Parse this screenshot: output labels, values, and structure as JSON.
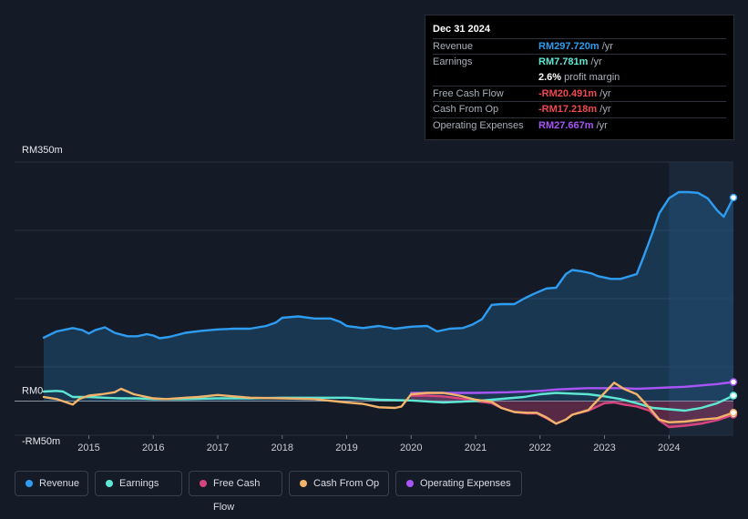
{
  "tooltip": {
    "date": "Dec 31 2024",
    "rows": [
      {
        "label": "Revenue",
        "value": "RM297.720m",
        "unit": " /yr",
        "color": "#2e9cf0"
      },
      {
        "label": "Earnings",
        "value": "RM7.781m",
        "unit": " /yr",
        "color": "#5ee8d4"
      },
      {
        "label": "",
        "value": "2.6%",
        "unit": " profit margin",
        "color": "#ffffff"
      },
      {
        "label": "Free Cash Flow",
        "value": "-RM20.491m",
        "unit": " /yr",
        "color": "#f0484f"
      },
      {
        "label": "Cash From Op",
        "value": "-RM17.218m",
        "unit": " /yr",
        "color": "#f0484f"
      },
      {
        "label": "Operating Expenses",
        "value": "RM27.667m",
        "unit": " /yr",
        "color": "#a855f7"
      }
    ]
  },
  "legend": [
    {
      "label": "Revenue",
      "color": "#2e9cf0"
    },
    {
      "label": "Earnings",
      "color": "#5ee8d4"
    },
    {
      "label": "Free Cash Flow",
      "color": "#d6457e"
    },
    {
      "label": "Cash From Op",
      "color": "#f2b46b"
    },
    {
      "label": "Operating Expenses",
      "color": "#a855f7"
    }
  ],
  "chart_data": {
    "type": "line",
    "title": "",
    "xlabel": "",
    "ylabel": "",
    "x_ticks": [
      "2015",
      "2016",
      "2017",
      "2018",
      "2019",
      "2020",
      "2021",
      "2022",
      "2023",
      "2024"
    ],
    "y_tick_labels": [
      "RM350m",
      "RM0",
      "-RM50m"
    ],
    "ylim": [
      -50,
      350
    ],
    "xlim": [
      2014.3,
      2025.0
    ],
    "highlight_from": 2024.0,
    "series": [
      {
        "name": "Revenue",
        "color": "#2e9cf0",
        "fill": true,
        "x": [
          2014.3,
          2014.5,
          2014.75,
          2014.9,
          2015.0,
          2015.1,
          2015.25,
          2015.4,
          2015.6,
          2015.75,
          2015.9,
          2016.0,
          2016.1,
          2016.25,
          2016.5,
          2016.75,
          2017.0,
          2017.25,
          2017.5,
          2017.75,
          2017.9,
          2018.0,
          2018.25,
          2018.5,
          2018.75,
          2018.9,
          2019.0,
          2019.25,
          2019.5,
          2019.75,
          2020.0,
          2020.25,
          2020.4,
          2020.6,
          2020.8,
          2020.95,
          2021.1,
          2021.25,
          2021.4,
          2021.6,
          2021.75,
          2021.9,
          2022.1,
          2022.25,
          2022.4,
          2022.5,
          2022.65,
          2022.8,
          2022.9,
          2023.1,
          2023.25,
          2023.5,
          2023.6,
          2023.75,
          2023.85,
          2024.0,
          2024.15,
          2024.3,
          2024.45,
          2024.6,
          2024.75,
          2024.85,
          2025.0
        ],
        "y": [
          93,
          102,
          107,
          104,
          99,
          104,
          108,
          100,
          95,
          95,
          98,
          96,
          92,
          94,
          100,
          103,
          105,
          106,
          106,
          110,
          115,
          122,
          124,
          121,
          121,
          116,
          110,
          107,
          110,
          106,
          109,
          110,
          102,
          106,
          107,
          112,
          120,
          141,
          142,
          142,
          150,
          157,
          165,
          166,
          186,
          192,
          190,
          187,
          183,
          179,
          179,
          186,
          210,
          248,
          275,
          297,
          306,
          306,
          305,
          297,
          279,
          270,
          298
        ]
      },
      {
        "name": "Earnings",
        "color": "#5ee8d4",
        "x": [
          2014.3,
          2014.5,
          2014.6,
          2014.75,
          2015.0,
          2015.25,
          2015.5,
          2015.75,
          2016.0,
          2016.5,
          2017.0,
          2017.5,
          2018.0,
          2018.5,
          2019.0,
          2019.5,
          2020.0,
          2020.5,
          2021.0,
          2021.25,
          2021.5,
          2021.75,
          2022.0,
          2022.25,
          2022.5,
          2022.75,
          2023.0,
          2023.25,
          2023.5,
          2023.75,
          2024.0,
          2024.25,
          2024.5,
          2024.75,
          2025.0
        ],
        "y": [
          14,
          15,
          14,
          6,
          6,
          5,
          4,
          4,
          3,
          3,
          4,
          4,
          5,
          5,
          5,
          2,
          1,
          -2,
          0,
          2,
          4,
          6,
          10,
          12,
          11,
          10,
          7,
          3,
          -3,
          -10,
          -12,
          -14,
          -10,
          -3,
          8
        ]
      },
      {
        "name": "Free Cash Flow",
        "color": "#d6457e",
        "fill": true,
        "x": [
          2020.0,
          2020.25,
          2020.5,
          2020.75,
          2021.0,
          2021.25,
          2021.4,
          2021.6,
          2021.8,
          2021.95,
          2022.1,
          2022.25,
          2022.4,
          2022.5,
          2022.75,
          2023.0,
          2023.15,
          2023.3,
          2023.5,
          2023.7,
          2023.85,
          2024.0,
          2024.25,
          2024.5,
          2024.75,
          2025.0
        ],
        "y": [
          8,
          8,
          7,
          4,
          0,
          -3,
          -10,
          -16,
          -18,
          -18,
          -25,
          -33,
          -27,
          -20,
          -14,
          -3,
          -2,
          -5,
          -8,
          -14,
          -28,
          -38,
          -36,
          -33,
          -28,
          -20
        ]
      },
      {
        "name": "Cash From Op",
        "color": "#f2b46b",
        "x": [
          2014.3,
          2014.5,
          2014.75,
          2014.85,
          2015.0,
          2015.2,
          2015.4,
          2015.5,
          2015.7,
          2016.0,
          2016.2,
          2016.5,
          2016.7,
          2017.0,
          2017.5,
          2018.0,
          2018.5,
          2019.0,
          2019.25,
          2019.5,
          2019.75,
          2019.85,
          2020.0,
          2020.25,
          2020.5,
          2020.75,
          2021.0,
          2021.25,
          2021.4,
          2021.6,
          2021.8,
          2021.95,
          2022.1,
          2022.25,
          2022.4,
          2022.5,
          2022.75,
          2023.0,
          2023.15,
          2023.3,
          2023.5,
          2023.7,
          2023.85,
          2024.0,
          2024.25,
          2024.5,
          2024.75,
          2025.0
        ],
        "y": [
          6,
          3,
          -5,
          3,
          8,
          10,
          13,
          18,
          10,
          4,
          3,
          5,
          6,
          9,
          5,
          4,
          3,
          -2,
          -4,
          -9,
          -10,
          -8,
          10,
          12,
          12,
          8,
          2,
          -1,
          -10,
          -16,
          -17,
          -17,
          -24,
          -33,
          -27,
          -20,
          -13,
          12,
          27,
          18,
          10,
          -10,
          -27,
          -31,
          -30,
          -27,
          -25,
          -17
        ]
      },
      {
        "name": "Operating Expenses",
        "color": "#a855f7",
        "x": [
          2020.0,
          2020.5,
          2021.0,
          2021.5,
          2022.0,
          2022.25,
          2022.5,
          2022.75,
          2023.0,
          2023.25,
          2023.5,
          2023.75,
          2024.0,
          2024.25,
          2024.5,
          2024.75,
          2025.0
        ],
        "y": [
          12,
          12,
          12,
          13,
          15,
          17,
          18,
          19,
          19,
          19,
          18,
          19,
          20,
          21,
          23,
          25,
          28
        ]
      }
    ]
  }
}
